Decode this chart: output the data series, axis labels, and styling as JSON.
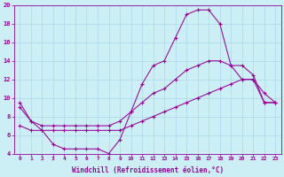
{
  "xlabel": "Windchill (Refroidissement éolien,°C)",
  "bg_color": "#cceef5",
  "grid_color": "#aad8e8",
  "line_color": "#990099",
  "xlim": [
    -0.5,
    23.5
  ],
  "ylim": [
    4,
    20
  ],
  "xticks": [
    0,
    1,
    2,
    3,
    4,
    5,
    6,
    7,
    8,
    9,
    10,
    11,
    12,
    13,
    14,
    15,
    16,
    17,
    18,
    19,
    20,
    21,
    22,
    23
  ],
  "yticks": [
    4,
    6,
    8,
    10,
    12,
    14,
    16,
    18,
    20
  ],
  "line1_x": [
    0,
    1,
    2,
    3,
    4,
    5,
    6,
    7,
    8,
    9,
    10,
    11,
    12,
    13,
    14,
    15,
    16,
    17,
    18,
    19,
    20,
    21,
    22,
    23
  ],
  "line1_y": [
    9.5,
    7.5,
    6.5,
    5.0,
    4.5,
    4.5,
    4.5,
    4.5,
    4.0,
    5.5,
    8.5,
    11.5,
    13.5,
    14.0,
    16.5,
    19.0,
    19.5,
    19.5,
    18.0,
    13.5,
    12.0,
    12.0,
    10.5,
    9.5
  ],
  "line2_x": [
    0,
    1,
    2,
    3,
    4,
    5,
    6,
    7,
    8,
    9,
    10,
    11,
    12,
    13,
    14,
    15,
    16,
    17,
    18,
    19,
    20,
    21,
    22,
    23
  ],
  "line2_y": [
    9.0,
    7.5,
    7.0,
    7.0,
    7.0,
    7.0,
    7.0,
    7.0,
    7.0,
    7.5,
    8.5,
    9.5,
    10.5,
    11.0,
    12.0,
    13.0,
    13.5,
    14.0,
    14.0,
    13.5,
    13.5,
    12.5,
    9.5,
    9.5
  ],
  "line3_x": [
    0,
    1,
    2,
    3,
    4,
    5,
    6,
    7,
    8,
    9,
    10,
    11,
    12,
    13,
    14,
    15,
    16,
    17,
    18,
    19,
    20,
    21,
    22,
    23
  ],
  "line3_y": [
    7.0,
    6.5,
    6.5,
    6.5,
    6.5,
    6.5,
    6.5,
    6.5,
    6.5,
    6.5,
    7.0,
    7.5,
    8.0,
    8.5,
    9.0,
    9.5,
    10.0,
    10.5,
    11.0,
    11.5,
    12.0,
    12.0,
    9.5,
    9.5
  ]
}
